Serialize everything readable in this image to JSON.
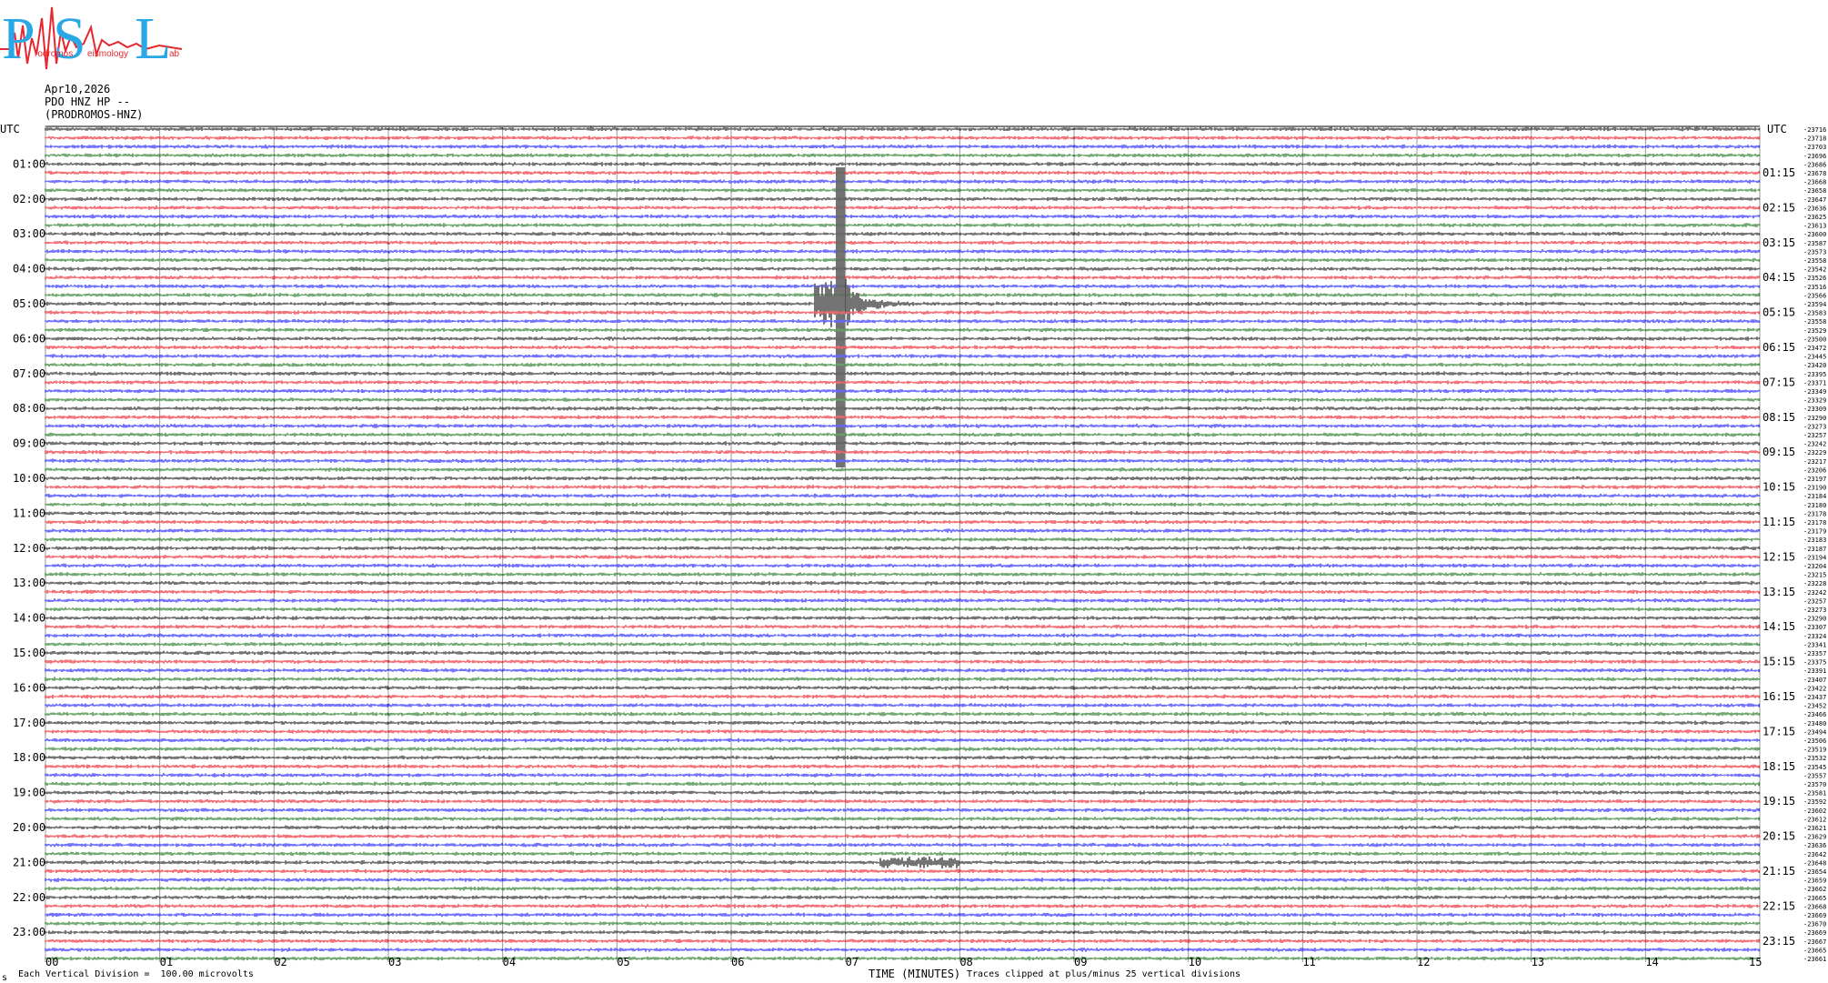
{
  "logo": {
    "letters": [
      "P",
      "S",
      "L"
    ],
    "words": [
      "rodromos",
      "eismology",
      "ab"
    ],
    "colors": {
      "blue": "#2aa8e6",
      "red": "#e8262e"
    }
  },
  "header": {
    "date": "Apr10,2026",
    "channel": "PDO HNZ HP --",
    "station": "(PRODROMOS-HNZ)"
  },
  "footer": {
    "left_mark": "s",
    "scale_note": "Each Vertical Division =  100.00 microvolts",
    "x_title": "TIME (MINUTES)",
    "clip_note": "Traces clipped at plus/minus 25 vertical divisions"
  },
  "chart_data": {
    "type": "line",
    "title": "",
    "xlabel": "TIME (MINUTES)",
    "ylabel": "UTC",
    "xlim": [
      0,
      15
    ],
    "x_ticks": [
      "00",
      "01",
      "02",
      "03",
      "04",
      "05",
      "06",
      "07",
      "08",
      "09",
      "10",
      "11",
      "12",
      "13",
      "14",
      "15"
    ],
    "left_axis_title": "UTC",
    "right_axis_title": "UTC",
    "left_hour_labels": [
      "01:00",
      "02:00",
      "03:00",
      "04:00",
      "05:00",
      "06:00",
      "07:00",
      "08:00",
      "09:00",
      "10:00",
      "11:00",
      "12:00",
      "13:00",
      "14:00",
      "15:00",
      "16:00",
      "17:00",
      "18:00",
      "19:00",
      "20:00",
      "21:00",
      "22:00",
      "23:00"
    ],
    "right_hour_labels": [
      "01:15",
      "02:15",
      "03:15",
      "04:15",
      "05:15",
      "06:15",
      "07:15",
      "08:15",
      "09:15",
      "10:15",
      "11:15",
      "12:15",
      "13:15",
      "14:15",
      "15:15",
      "16:15",
      "17:15",
      "18:15",
      "19:15",
      "20:15",
      "21:15",
      "22:15",
      "23:15"
    ],
    "trace_colors": [
      "#000000",
      "#e8000b",
      "#0000ff",
      "#006400"
    ],
    "trace_offsets": [
      -23716,
      -23718,
      -23703,
      -23696,
      -23686,
      -23678,
      -23668,
      -23658,
      -23647,
      -23636,
      -23625,
      -23613,
      -23600,
      -23587,
      -23573,
      -23558,
      -23542,
      -23526,
      -23516,
      -23566,
      -23594,
      -23583,
      -23558,
      -23529,
      -23500,
      -23472,
      -23445,
      -23420,
      -23395,
      -23371,
      -23349,
      -23329,
      -23309,
      -23290,
      -23273,
      -23257,
      -23242,
      -23229,
      -23217,
      -23206,
      -23197,
      -23190,
      -23184,
      -23180,
      -23178,
      -23178,
      -23179,
      -23183,
      -23187,
      -23194,
      -23204,
      -23215,
      -23228,
      -23242,
      -23257,
      -23273,
      -23290,
      -23307,
      -23324,
      -23341,
      -23357,
      -23375,
      -23391,
      -23407,
      -23422,
      -23437,
      -23452,
      -23466,
      -23480,
      -23494,
      -23506,
      -23519,
      -23532,
      -23545,
      -23557,
      -23570,
      -23581,
      -23592,
      -23602,
      -23612,
      -23621,
      -23629,
      -23636,
      -23642,
      -23648,
      -23654,
      -23659,
      -23662,
      -23665,
      -23668,
      -23669,
      -23670,
      -23669,
      -23667,
      -23665,
      -23661
    ],
    "events": [
      {
        "name": "earthquake",
        "trace_hour": "05:00",
        "start_minute": 6.72,
        "end_minute": 7.6,
        "peak_minute": 6.95,
        "clipped": true
      },
      {
        "name": "small event",
        "trace_hour": "21:00",
        "start_minute": 7.3,
        "end_minute": 8.0
      }
    ]
  }
}
